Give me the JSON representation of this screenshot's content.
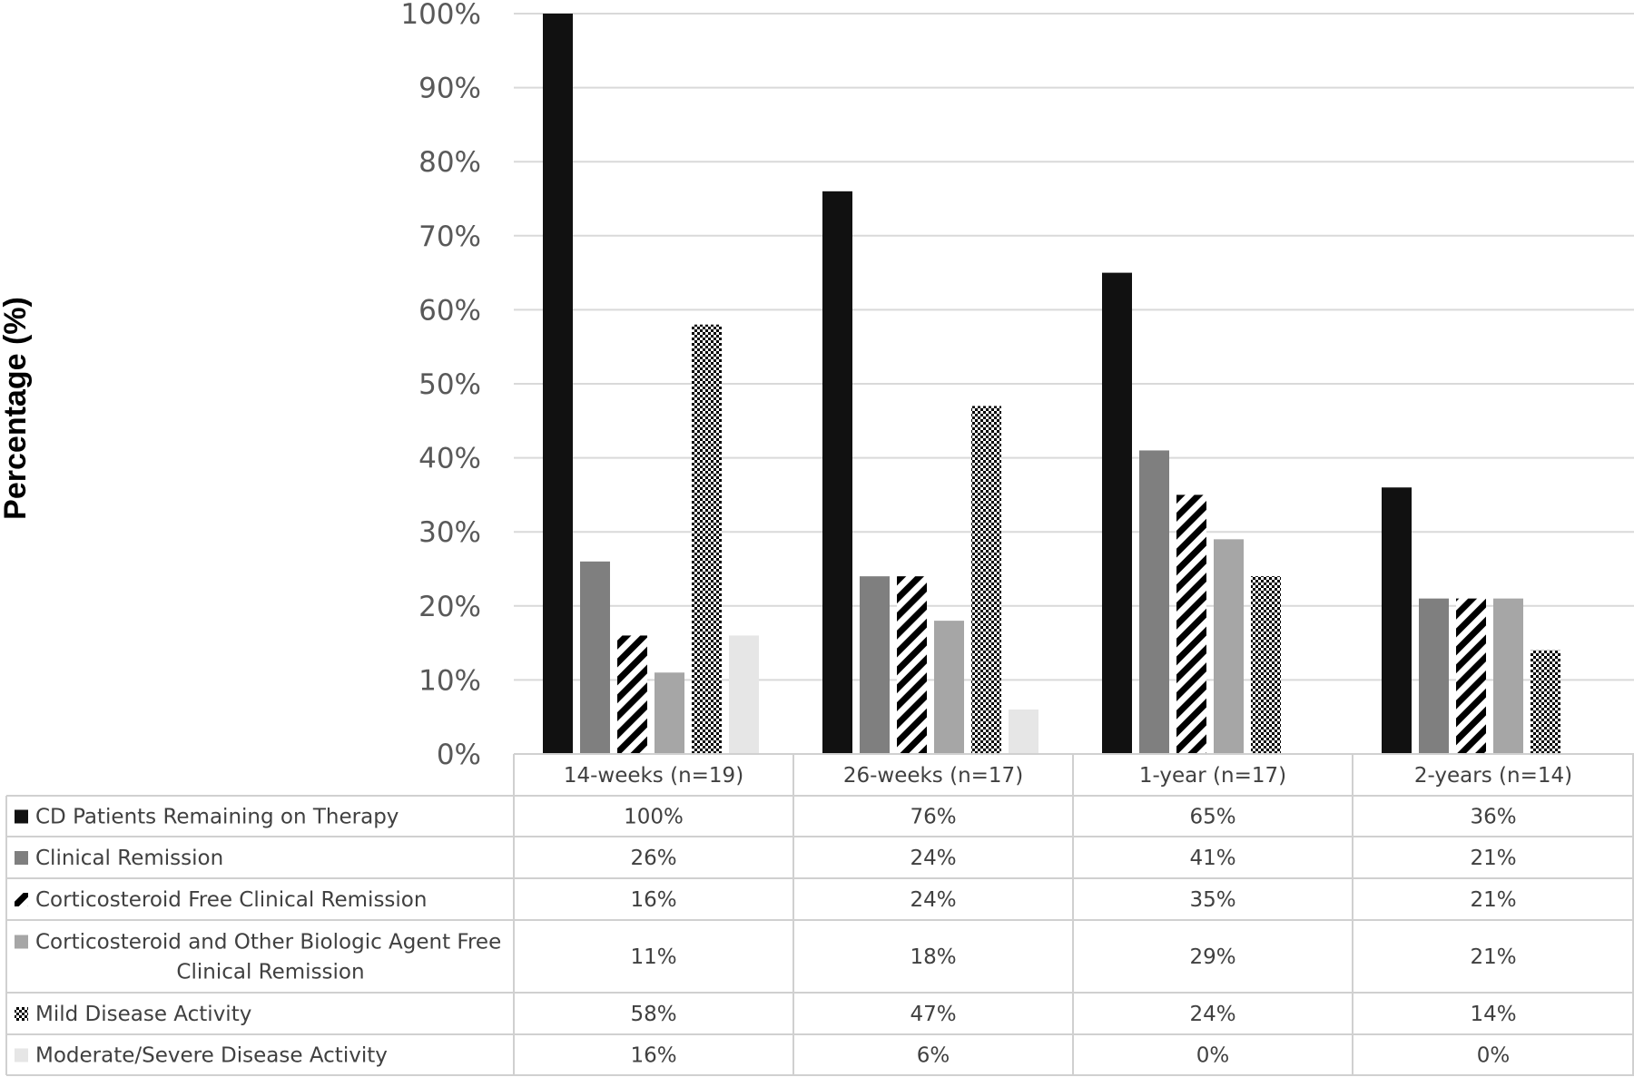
{
  "chart_data": {
    "type": "bar",
    "ylabel": "Percentage (%)",
    "ylim": [
      0,
      100
    ],
    "yticks": [
      "0%",
      "10%",
      "20%",
      "30%",
      "40%",
      "50%",
      "60%",
      "70%",
      "80%",
      "90%",
      "100%"
    ],
    "grid": true,
    "legend": "data-table",
    "categories": [
      "14-weeks (n=19)",
      "26-weeks (n=17)",
      "1-year (n=17)",
      "2-years (n=14)"
    ],
    "series": [
      {
        "name": "CD Patients Remaining on Therapy",
        "name_lines": [
          "CD Patients Remaining on Therapy"
        ],
        "pattern": "solid-black",
        "color": "#111111",
        "values": [
          100,
          76,
          65,
          36
        ],
        "labels": [
          "100%",
          "76%",
          "65%",
          "36%"
        ]
      },
      {
        "name": "Clinical Remission",
        "name_lines": [
          "Clinical Remission"
        ],
        "pattern": "solid-dark-gray",
        "color": "#7f7f7f",
        "values": [
          26,
          24,
          41,
          21
        ],
        "labels": [
          "26%",
          "24%",
          "41%",
          "21%"
        ]
      },
      {
        "name": "Corticosteroid Free Clinical Remission",
        "name_lines": [
          "Corticosteroid Free Clinical Remission"
        ],
        "pattern": "diagonal-stripes",
        "color": "#000000",
        "values": [
          16,
          24,
          35,
          21
        ],
        "labels": [
          "16%",
          "24%",
          "35%",
          "21%"
        ]
      },
      {
        "name": "Corticosteroid and Other Biologic Agent Free Clinical Remission",
        "name_lines": [
          "Corticosteroid and Other Biologic Agent Free",
          "Clinical Remission"
        ],
        "pattern": "solid-light-gray",
        "color": "#a6a6a6",
        "values": [
          11,
          18,
          29,
          21
        ],
        "labels": [
          "11%",
          "18%",
          "29%",
          "21%"
        ]
      },
      {
        "name": "Mild Disease Activity",
        "name_lines": [
          "Mild Disease Activity"
        ],
        "pattern": "checkerboard",
        "color": "#000000",
        "values": [
          58,
          47,
          24,
          14
        ],
        "labels": [
          "58%",
          "47%",
          "24%",
          "14%"
        ]
      },
      {
        "name": "Moderate/Severe Disease Activity",
        "name_lines": [
          "Moderate/Severe Disease Activity"
        ],
        "pattern": "solid-very-light-gray",
        "color": "#e6e6e6",
        "values": [
          16,
          6,
          0,
          0
        ],
        "labels": [
          "16%",
          "6%",
          "0%",
          "0%"
        ]
      }
    ]
  }
}
